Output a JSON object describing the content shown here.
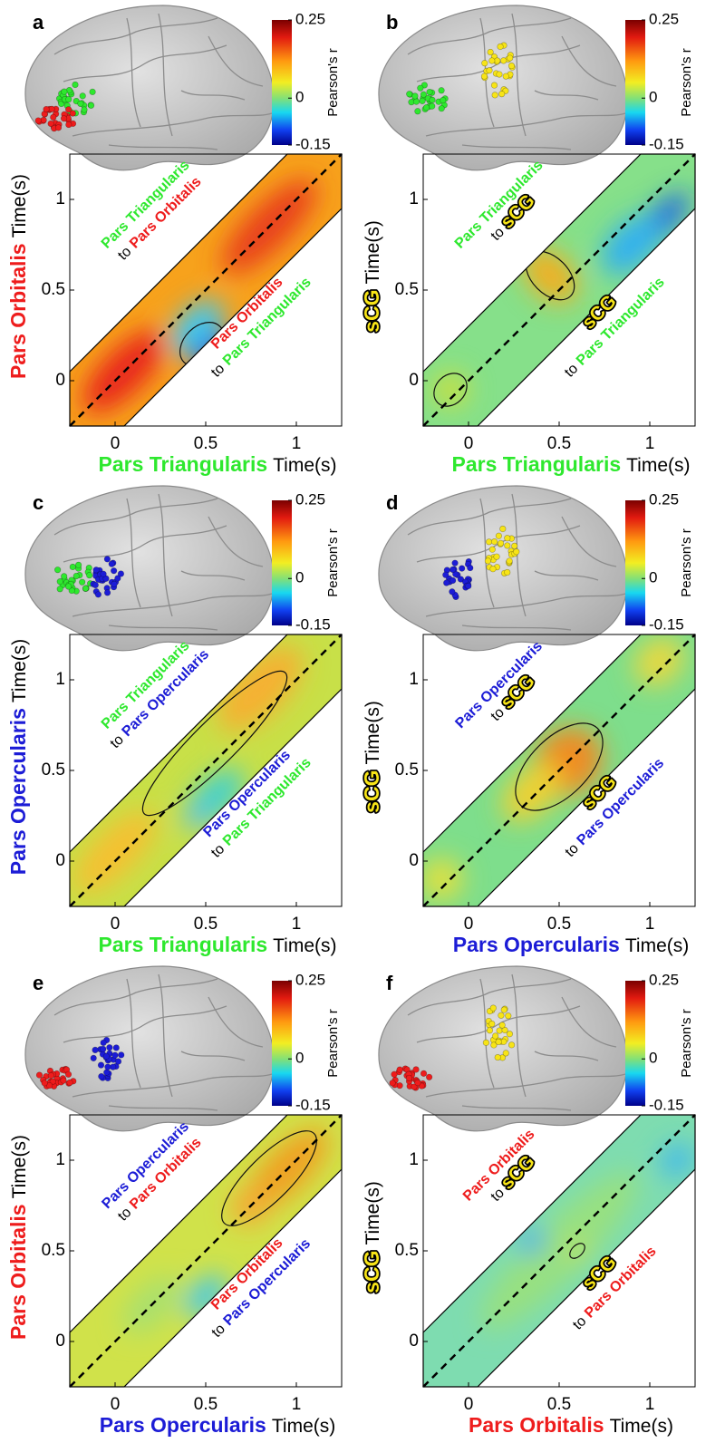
{
  "chart_data": [
    {
      "type": "heatmap",
      "panel": "a",
      "y_region": {
        "text": "Pars Orbitalis",
        "color": "#ee1c1c"
      },
      "x_region": {
        "text": "Pars Triangularis",
        "color": "#2ee82e"
      },
      "axis_unit": "Time(s)",
      "xlim": [
        -0.25,
        1.25
      ],
      "ylim": [
        -0.25,
        1.25
      ],
      "xticks": [
        0,
        0.5,
        1
      ],
      "yticks": [
        0,
        0.5,
        1
      ],
      "colorbar": {
        "label": "Pearson's r",
        "lim": [
          -0.15,
          0.25
        ],
        "ticks": [
          0.25,
          0,
          -0.15
        ]
      },
      "annotations": [
        {
          "from": {
            "text": "Pars Triangularis",
            "color": "#2ee82e"
          },
          "to_word": "to",
          "to": {
            "text": "Pars Orbitalis",
            "color": "#ee1c1c"
          }
        },
        {
          "from": {
            "text": "Pars Orbitalis",
            "color": "#ee1c1c"
          },
          "to_word": "to",
          "to": {
            "text": "Pars Triangularis",
            "color": "#2ee82e"
          }
        }
      ]
    },
    {
      "type": "heatmap",
      "panel": "b",
      "y_region": {
        "text": "sCG",
        "color": "#f7e417"
      },
      "x_region": {
        "text": "Pars Triangularis",
        "color": "#2ee82e"
      },
      "axis_unit": "Time(s)",
      "xlim": [
        -0.25,
        1.25
      ],
      "ylim": [
        -0.25,
        1.25
      ],
      "xticks": [
        0,
        0.5,
        1
      ],
      "yticks": [
        0,
        0.5,
        1
      ],
      "colorbar": {
        "label": "Pearson's r",
        "lim": [
          -0.15,
          0.25
        ],
        "ticks": [
          0.25,
          0,
          -0.15
        ]
      },
      "annotations": [
        {
          "from": {
            "text": "Pars Triangularis",
            "color": "#2ee82e"
          },
          "to_word": "to",
          "to": {
            "text": "sCG",
            "color": "#f7e417"
          }
        },
        {
          "from": {
            "text": "sCG",
            "color": "#f7e417"
          },
          "to_word": "to",
          "to": {
            "text": "Pars Triangularis",
            "color": "#2ee82e"
          }
        }
      ]
    },
    {
      "type": "heatmap",
      "panel": "c",
      "y_region": {
        "text": "Pars Opercularis",
        "color": "#1c1cd6"
      },
      "x_region": {
        "text": "Pars Triangularis",
        "color": "#2ee82e"
      },
      "axis_unit": "Time(s)",
      "xlim": [
        -0.25,
        1.25
      ],
      "ylim": [
        -0.25,
        1.25
      ],
      "xticks": [
        0,
        0.5,
        1
      ],
      "yticks": [
        0,
        0.5,
        1
      ],
      "colorbar": {
        "label": "Pearson's r",
        "lim": [
          -0.15,
          0.25
        ],
        "ticks": [
          0.25,
          0,
          -0.15
        ]
      },
      "annotations": [
        {
          "from": {
            "text": "Pars Triangularis",
            "color": "#2ee82e"
          },
          "to_word": "to",
          "to": {
            "text": "Pars Opercularis",
            "color": "#1c1cd6"
          }
        },
        {
          "from": {
            "text": "Pars Opercularis",
            "color": "#1c1cd6"
          },
          "to_word": "to",
          "to": {
            "text": "Pars Triangularis",
            "color": "#2ee82e"
          }
        }
      ]
    },
    {
      "type": "heatmap",
      "panel": "d",
      "y_region": {
        "text": "sCG",
        "color": "#f7e417"
      },
      "x_region": {
        "text": "Pars Opercularis",
        "color": "#1c1cd6"
      },
      "axis_unit": "Time(s)",
      "xlim": [
        -0.25,
        1.25
      ],
      "ylim": [
        -0.25,
        1.25
      ],
      "xticks": [
        0,
        0.5,
        1
      ],
      "yticks": [
        0,
        0.5,
        1
      ],
      "colorbar": {
        "label": "Pearson's r",
        "lim": [
          -0.15,
          0.25
        ],
        "ticks": [
          0.25,
          0,
          -0.15
        ]
      },
      "annotations": [
        {
          "from": {
            "text": "Pars Opercularis",
            "color": "#1c1cd6"
          },
          "to_word": "to",
          "to": {
            "text": "sCG",
            "color": "#f7e417"
          }
        },
        {
          "from": {
            "text": "sCG",
            "color": "#f7e417"
          },
          "to_word": "to",
          "to": {
            "text": "Pars Opercularis",
            "color": "#1c1cd6"
          }
        }
      ]
    },
    {
      "type": "heatmap",
      "panel": "e",
      "y_region": {
        "text": "Pars Orbitalis",
        "color": "#ee1c1c"
      },
      "x_region": {
        "text": "Pars Opercularis",
        "color": "#1c1cd6"
      },
      "axis_unit": "Time(s)",
      "xlim": [
        -0.25,
        1.25
      ],
      "ylim": [
        -0.25,
        1.25
      ],
      "xticks": [
        0,
        0.5,
        1
      ],
      "yticks": [
        0,
        0.5,
        1
      ],
      "colorbar": {
        "label": "Pearson's r",
        "lim": [
          -0.15,
          0.25
        ],
        "ticks": [
          0.25,
          0,
          -0.15
        ]
      },
      "annotations": [
        {
          "from": {
            "text": "Pars Opercularis",
            "color": "#1c1cd6"
          },
          "to_word": "to",
          "to": {
            "text": "Pars Orbitalis",
            "color": "#ee1c1c"
          }
        },
        {
          "from": {
            "text": "Pars Orbitalis",
            "color": "#ee1c1c"
          },
          "to_word": "to",
          "to": {
            "text": "Pars Opercularis",
            "color": "#1c1cd6"
          }
        }
      ]
    },
    {
      "type": "heatmap",
      "panel": "f",
      "y_region": {
        "text": "sCG",
        "color": "#f7e417"
      },
      "x_region": {
        "text": "Pars Orbitalis",
        "color": "#ee1c1c"
      },
      "axis_unit": "Time(s)",
      "xlim": [
        -0.25,
        1.25
      ],
      "ylim": [
        -0.25,
        1.25
      ],
      "xticks": [
        0,
        0.5,
        1
      ],
      "yticks": [
        0,
        0.5,
        1
      ],
      "colorbar": {
        "label": "Pearson's r",
        "lim": [
          -0.15,
          0.25
        ],
        "ticks": [
          0.25,
          0,
          -0.15
        ]
      },
      "annotations": [
        {
          "from": {
            "text": "Pars Orbitalis",
            "color": "#ee1c1c"
          },
          "to_word": "to",
          "to": {
            "text": "sCG",
            "color": "#f7e417"
          }
        },
        {
          "from": {
            "text": "sCG",
            "color": "#f7e417"
          },
          "to_word": "to",
          "to": {
            "text": "Pars Orbitalis",
            "color": "#ee1c1c"
          }
        }
      ]
    }
  ]
}
